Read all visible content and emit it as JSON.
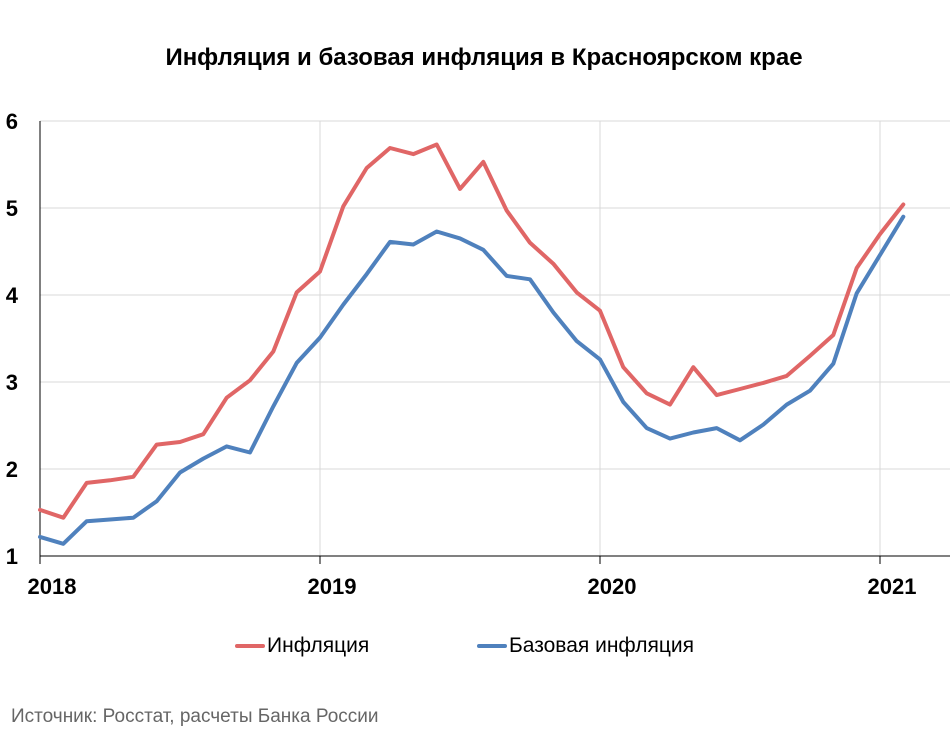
{
  "title": "Инфляция и базовая инфляция в Красноярском крае",
  "source": "Источник: Росстат, расчеты Банка России",
  "colors": {
    "inflation": "#e06666",
    "core": "#4f81bd",
    "grid": "#d9d9d9",
    "axis": "#000000"
  },
  "chart_data": {
    "type": "line",
    "title": "Инфляция и базовая инфляция в Красноярском крае",
    "xlabel": "",
    "ylabel": "",
    "x_start": "2018-01",
    "x_ticks": [
      "2018",
      "2019",
      "2020",
      "2021"
    ],
    "y_ticks": [
      "1",
      "2",
      "3",
      "4",
      "5",
      "6"
    ],
    "ylim": [
      1,
      6
    ],
    "grid": true,
    "legend_position": "bottom",
    "series": [
      {
        "name": "Инфляция",
        "color": "#e06666",
        "values": [
          1.53,
          1.44,
          1.84,
          1.87,
          1.91,
          2.28,
          2.31,
          2.4,
          2.82,
          3.02,
          3.35,
          4.03,
          4.27,
          5.02,
          5.46,
          5.69,
          5.62,
          5.73,
          5.22,
          5.53,
          4.97,
          4.6,
          4.36,
          4.03,
          3.82,
          3.17,
          2.87,
          2.74,
          3.17,
          2.85,
          2.92,
          2.99,
          3.07,
          3.3,
          3.54,
          4.31,
          4.7,
          5.04
        ]
      },
      {
        "name": "Базовая инфляция",
        "color": "#4f81bd",
        "values": [
          1.22,
          1.14,
          1.4,
          1.42,
          1.44,
          1.63,
          1.96,
          2.12,
          2.26,
          2.19,
          2.72,
          3.22,
          3.51,
          3.89,
          4.24,
          4.61,
          4.58,
          4.73,
          4.65,
          4.52,
          4.22,
          4.18,
          3.8,
          3.47,
          3.26,
          2.77,
          2.47,
          2.35,
          2.42,
          2.47,
          2.33,
          2.51,
          2.74,
          2.9,
          3.21,
          4.02,
          4.46,
          4.9
        ]
      }
    ]
  }
}
